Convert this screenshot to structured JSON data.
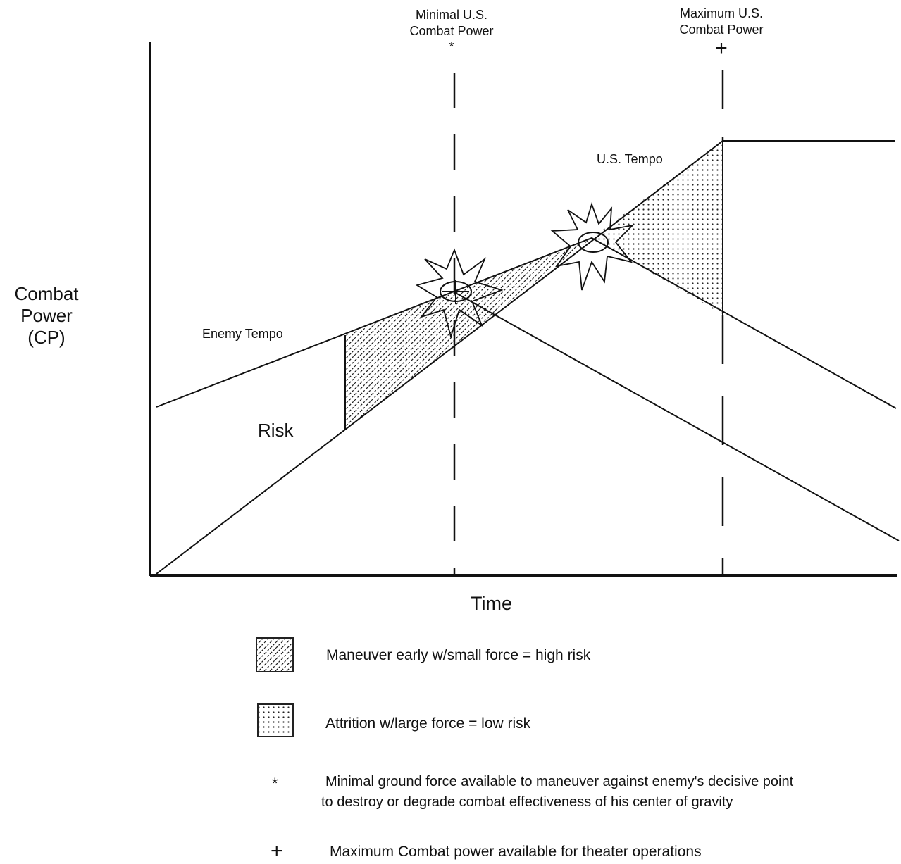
{
  "marker_labels": {
    "minimal": {
      "line1": "Minimal U.S.",
      "line2": "Combat Power",
      "symbol": "*"
    },
    "maximum": {
      "line1": "Maximum U.S.",
      "line2": "Combat Power",
      "symbol": "+"
    }
  },
  "axes": {
    "y_label": {
      "line1": "Combat",
      "line2": "Power",
      "line3": "(CP)"
    },
    "x_label": "Time"
  },
  "lines": {
    "us_tempo": "U.S. Tempo",
    "enemy_tempo": "Enemy Tempo"
  },
  "region_label": "Risk",
  "legend": {
    "maneuver": "Maneuver early w/small force = high risk",
    "attrition": "Attrition w/large force = low risk",
    "star_symbol": "*",
    "star_line1": "Minimal ground force available to maneuver against enemy's decisive point",
    "star_line2": "to destroy or degrade combat effectiveness of his center of gravity",
    "plus_symbol": "+",
    "plus_text": "Maximum Combat power available for  theater operations"
  },
  "colors": {
    "ink": "#111111",
    "background": "#ffffff"
  }
}
